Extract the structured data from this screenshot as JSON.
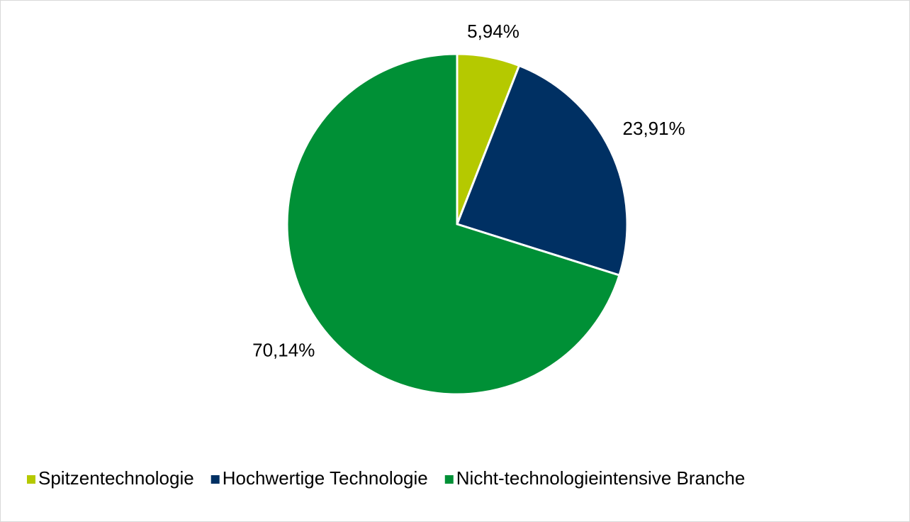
{
  "chart_data": {
    "type": "pie",
    "categories": [
      "Spitzentechnologie",
      "Hochwertige Technologie",
      "Nicht-technologieintensive Branche"
    ],
    "values": [
      5.94,
      23.91,
      70.14
    ],
    "value_labels": [
      "5,94%",
      "23,91%",
      "70,14%"
    ],
    "colors": [
      "#b5c900",
      "#003063",
      "#009036"
    ],
    "legend": "bottom"
  }
}
